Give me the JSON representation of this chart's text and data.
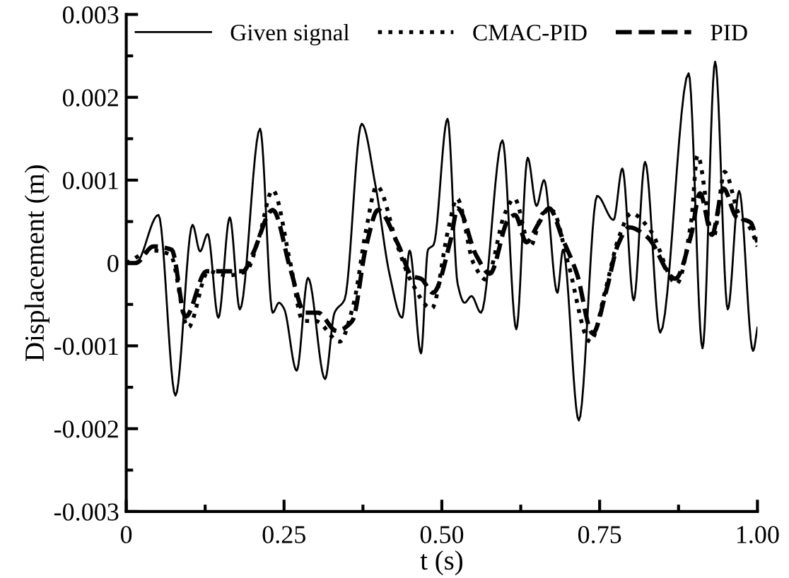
{
  "chart_data": {
    "type": "line",
    "xlabel": "t (s)",
    "ylabel": "Displacement (m)",
    "xlim": [
      0,
      1
    ],
    "ylim": [
      -0.003,
      0.003
    ],
    "xticks": [
      {
        "value": 0,
        "label": "0"
      },
      {
        "value": 0.125,
        "label": null
      },
      {
        "value": 0.25,
        "label": "0.25"
      },
      {
        "value": 0.375,
        "label": null
      },
      {
        "value": 0.5,
        "label": "0.50"
      },
      {
        "value": 0.625,
        "label": null
      },
      {
        "value": 0.75,
        "label": "0.75"
      },
      {
        "value": 0.875,
        "label": null
      },
      {
        "value": 1,
        "label": "1.00"
      }
    ],
    "yticks": [
      {
        "value": -0.003,
        "label": "-0.003"
      },
      {
        "value": -0.0025,
        "label": null
      },
      {
        "value": -0.002,
        "label": "-0.002"
      },
      {
        "value": -0.0015,
        "label": null
      },
      {
        "value": -0.001,
        "label": "-0.001"
      },
      {
        "value": -0.0005,
        "label": null
      },
      {
        "value": 0,
        "label": "0"
      },
      {
        "value": 0.0005,
        "label": null
      },
      {
        "value": 0.001,
        "label": "0.001"
      },
      {
        "value": 0.0015,
        "label": null
      },
      {
        "value": 0.002,
        "label": "0.002"
      },
      {
        "value": 0.0025,
        "label": null
      },
      {
        "value": 0.003,
        "label": "0.003"
      }
    ],
    "legend": "top",
    "grid": false,
    "marker": "none",
    "series": [
      {
        "name": "Given signal",
        "color": "#000000",
        "line_style": "solid",
        "x": [
          0,
          0.015,
          0.051,
          0.078,
          0.105,
          0.117,
          0.129,
          0.146,
          0.164,
          0.18,
          0.212,
          0.232,
          0.242,
          0.25,
          0.27,
          0.288,
          0.315,
          0.33,
          0.346,
          0.373,
          0.395,
          0.417,
          0.437,
          0.449,
          0.467,
          0.478,
          0.487,
          0.509,
          0.525,
          0.536,
          0.547,
          0.562,
          0.596,
          0.618,
          0.636,
          0.65,
          0.662,
          0.683,
          0.692,
          0.717,
          0.746,
          0.772,
          0.786,
          0.804,
          0.822,
          0.846,
          0.891,
          0.913,
          0.933,
          0.953,
          0.971,
          0.993,
          1.0
        ],
        "values": [
          0,
          0,
          0.00058,
          -0.0016,
          0.00046,
          0.00014,
          0.00035,
          -0.00066,
          0.00055,
          -0.00056,
          0.00162,
          -0.0006,
          -0.00048,
          -0.00055,
          -0.0013,
          -0.00018,
          -0.0014,
          -0.0006,
          -0.00044,
          0.00168,
          0.00093,
          -0.00013,
          -0.00066,
          0.00015,
          -0.00109,
          0.00016,
          0.00022,
          0.00174,
          -0.00025,
          -0.00048,
          -0.0004,
          -0.0006,
          0.00148,
          -0.0008,
          0.00127,
          0.00069,
          0.001,
          -0.00036,
          0.00016,
          -0.0019,
          0.00081,
          0.00052,
          0.00114,
          -0.00045,
          0.00122,
          -0.00084,
          0.00229,
          -0.00103,
          0.00243,
          -0.00056,
          0.00087,
          -0.00106,
          -0.00078
        ]
      },
      {
        "name": "CMAC-PID",
        "color": "#000000",
        "line_style": "dotted",
        "x": [
          0,
          0.043,
          0.07,
          0.098,
          0.13,
          0.16,
          0.19,
          0.21,
          0.232,
          0.26,
          0.28,
          0.3,
          0.338,
          0.36,
          0.38,
          0.397,
          0.43,
          0.45,
          0.484,
          0.51,
          0.524,
          0.55,
          0.57,
          0.6,
          0.615,
          0.64,
          0.66,
          0.675,
          0.7,
          0.735,
          0.76,
          0.78,
          0.8,
          0.83,
          0.872,
          0.895,
          0.905,
          0.93,
          0.948,
          0.97,
          0.99,
          1.0
        ],
        "values": [
          0,
          0.00015,
          0.0001,
          -0.00078,
          -0.0001,
          -0.00015,
          -0.0001,
          0.0003,
          0.00088,
          0.0,
          -0.0007,
          -0.0007,
          -0.00095,
          -0.0005,
          0.0004,
          0.00093,
          0.0002,
          -0.0002,
          -0.00055,
          0.0004,
          0.00078,
          0.0,
          -0.0002,
          0.0006,
          0.00078,
          0.0002,
          0.0006,
          0.00063,
          0.0,
          -0.00095,
          -0.0003,
          0.0003,
          0.0006,
          0.0004,
          -0.00025,
          0.0005,
          0.0013,
          0.0003,
          0.0011,
          0.0006,
          0.0004,
          0.0002
        ]
      },
      {
        "name": "PID",
        "color": "#000000",
        "line_style": "dashed",
        "x": [
          0,
          0.015,
          0.043,
          0.072,
          0.094,
          0.127,
          0.14,
          0.163,
          0.185,
          0.2,
          0.232,
          0.261,
          0.283,
          0.304,
          0.333,
          0.358,
          0.38,
          0.399,
          0.431,
          0.453,
          0.467,
          0.486,
          0.514,
          0.525,
          0.554,
          0.576,
          0.605,
          0.616,
          0.634,
          0.652,
          0.67,
          0.692,
          0.714,
          0.739,
          0.761,
          0.779,
          0.797,
          0.826,
          0.87,
          0.895,
          0.909,
          0.928,
          0.946,
          0.967,
          0.989,
          1.0
        ],
        "values": [
          0,
          0,
          0.0002,
          0.00016,
          -0.00065,
          -0.0001,
          -0.0001,
          -0.0001,
          -0.0001,
          0.0001,
          0.00064,
          -0.0001,
          -0.0006,
          -0.0006,
          -0.00082,
          -0.0007,
          0.0002,
          0.00064,
          0.00022,
          -0.00016,
          -0.00019,
          -0.00036,
          0.00028,
          0.00066,
          0.0001,
          -0.00013,
          0.00052,
          0.00058,
          0.00025,
          0.00046,
          0.00066,
          0.00028,
          -0.00013,
          -0.00085,
          -0.00032,
          0.00022,
          0.00043,
          0.00031,
          -0.00019,
          0.00034,
          0.00084,
          0.00034,
          0.0009,
          0.00055,
          0.00049,
          0.00025
        ]
      }
    ]
  }
}
